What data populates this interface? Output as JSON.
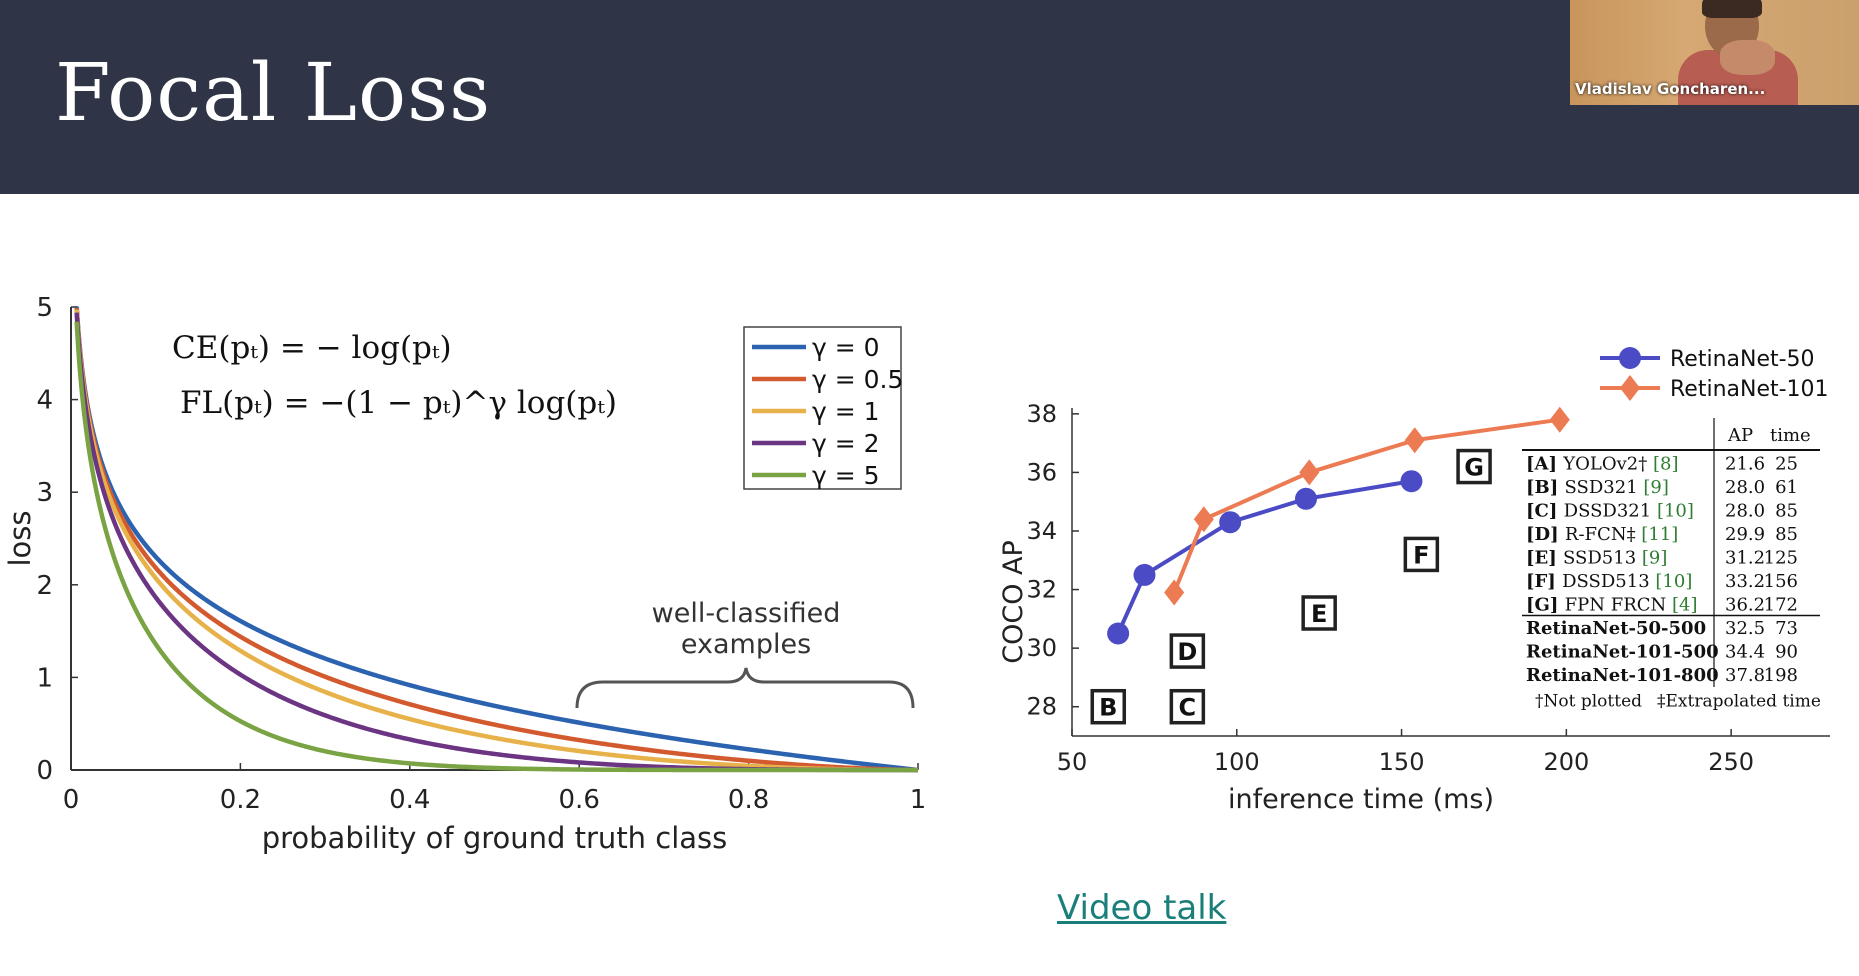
{
  "colors": {
    "header_bg": "#2f3546",
    "title_text": "#ffffff",
    "link": "#1a7f7a",
    "axis": "#333333"
  },
  "slide": {
    "title": "Focal Loss",
    "link_label": "Video talk"
  },
  "webcam": {
    "participant_name": "Vladislav Goncharen..."
  },
  "left_chart": {
    "formula_ce": "CE(pₜ) = − log(pₜ)",
    "formula_fl": "FL(pₜ) = −(1 − pₜ)^γ log(pₜ)",
    "annotation_line1": "well-classified",
    "annotation_line2": "examples"
  },
  "right_chart": {
    "table": {
      "headers": [
        "",
        "AP",
        "time"
      ],
      "rows": [
        {
          "id": "[A]",
          "name": "YOLOv2†",
          "ref": "[8]",
          "ap": "21.6",
          "time": "25",
          "bold": false
        },
        {
          "id": "[B]",
          "name": "SSD321",
          "ref": "[9]",
          "ap": "28.0",
          "time": "61",
          "bold": false
        },
        {
          "id": "[C]",
          "name": "DSSD321",
          "ref": "[10]",
          "ap": "28.0",
          "time": "85",
          "bold": false
        },
        {
          "id": "[D]",
          "name": "R-FCN‡",
          "ref": "[11]",
          "ap": "29.9",
          "time": "85",
          "bold": false
        },
        {
          "id": "[E]",
          "name": "SSD513",
          "ref": "[9]",
          "ap": "31.2",
          "time": "125",
          "bold": false
        },
        {
          "id": "[F]",
          "name": "DSSD513",
          "ref": "[10]",
          "ap": "33.2",
          "time": "156",
          "bold": false
        },
        {
          "id": "[G]",
          "name": "FPN FRCN",
          "ref": "[4]",
          "ap": "36.2",
          "time": "172",
          "bold": false
        },
        {
          "id": "",
          "name": "RetinaNet-50-500",
          "ref": "",
          "ap": "32.5",
          "time": "73",
          "bold": true
        },
        {
          "id": "",
          "name": "RetinaNet-101-500",
          "ref": "",
          "ap": "34.4",
          "time": "90",
          "bold": true
        },
        {
          "id": "",
          "name": "RetinaNet-101-800",
          "ref": "",
          "ap": "37.8",
          "time": "198",
          "bold": true
        }
      ],
      "footnote_1": "†Not plotted",
      "footnote_2": "‡Extrapolated time"
    }
  },
  "chart_data": [
    {
      "type": "line",
      "xlabel": "probability of ground truth class",
      "ylabel": "loss",
      "xlim": [
        0,
        1
      ],
      "ylim": [
        0,
        5
      ],
      "xticks": [
        "0",
        "0.2",
        "0.4",
        "0.6",
        "0.8",
        "1"
      ],
      "yticks": [
        "0",
        "1",
        "2",
        "3",
        "4",
        "5"
      ],
      "legend": "top-right",
      "series": [
        {
          "name": "γ = 0",
          "gamma": 0,
          "color": "#2b63b0"
        },
        {
          "name": "γ = 0.5",
          "gamma": 0.5,
          "color": "#d35a2e"
        },
        {
          "name": "γ = 1",
          "gamma": 1,
          "color": "#e8b24a"
        },
        {
          "name": "γ = 2",
          "gamma": 2,
          "color": "#6b3583"
        },
        {
          "name": "γ = 5",
          "gamma": 5,
          "color": "#7aa344"
        }
      ]
    },
    {
      "type": "scatter",
      "xlabel": "inference time (ms)",
      "ylabel": "COCO AP",
      "xlim": [
        50,
        280
      ],
      "ylim": [
        27,
        38.2
      ],
      "xticks": [
        "50",
        "100",
        "150",
        "200",
        "250"
      ],
      "yticks": [
        "28",
        "30",
        "32",
        "34",
        "36",
        "38"
      ],
      "legend": "top-right",
      "series": [
        {
          "name": "RetinaNet-50",
          "color": "#4b4bc6",
          "marker": "circle",
          "x": [
            64,
            72,
            98,
            121,
            153
          ],
          "y": [
            30.5,
            32.5,
            34.3,
            35.1,
            35.7
          ]
        },
        {
          "name": "RetinaNet-101",
          "color": "#ec7a52",
          "marker": "diamond",
          "x": [
            81,
            90,
            122,
            154,
            198
          ],
          "y": [
            31.9,
            34.4,
            36.0,
            37.1,
            37.8
          ]
        }
      ],
      "points": [
        {
          "label": "B",
          "x": 61,
          "y": 28.0
        },
        {
          "label": "C",
          "x": 85,
          "y": 28.0
        },
        {
          "label": "D",
          "x": 85,
          "y": 29.9
        },
        {
          "label": "E",
          "x": 125,
          "y": 31.2
        },
        {
          "label": "F",
          "x": 156,
          "y": 33.2
        },
        {
          "label": "G",
          "x": 172,
          "y": 36.2
        }
      ]
    }
  ]
}
